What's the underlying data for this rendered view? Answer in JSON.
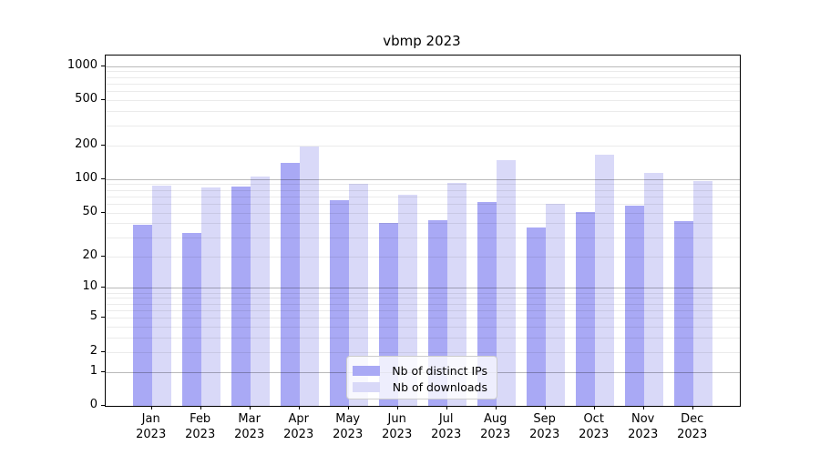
{
  "chart_data": {
    "type": "bar",
    "title": "vbmp 2023",
    "categories": [
      "Jan 2023",
      "Feb 2023",
      "Mar 2023",
      "Apr 2023",
      "May 2023",
      "Jun 2023",
      "Jul 2023",
      "Aug 2023",
      "Sep 2023",
      "Oct 2023",
      "Nov 2023",
      "Dec 2023"
    ],
    "series": [
      {
        "name": "Nb of distinct IPs",
        "color": "#a9a9f5",
        "values": [
          39,
          33,
          85,
          140,
          65,
          40,
          43,
          62,
          37,
          51,
          58,
          42
        ]
      },
      {
        "name": "Nb of downloads",
        "color": "#d9d9f8",
        "values": [
          88,
          84,
          106,
          193,
          90,
          73,
          92,
          147,
          60,
          165,
          114,
          95
        ]
      }
    ],
    "xlabel": "",
    "ylabel": "",
    "y_ticks": [
      0,
      1,
      2,
      5,
      10,
      20,
      50,
      100,
      200,
      500,
      1000
    ],
    "y_scale": "log2(value+1)",
    "ylim": [
      0,
      1255
    ],
    "grid": "horizontal; light minor lines at 2-9 per decade, gray lines at 1/10/100/1000",
    "legend_position": "inside-bottom-center",
    "colors": {
      "minor_gridline": "#ececec",
      "major_gridline": "#bbbbbb",
      "axis": "#000000",
      "background": "#ffffff"
    }
  }
}
